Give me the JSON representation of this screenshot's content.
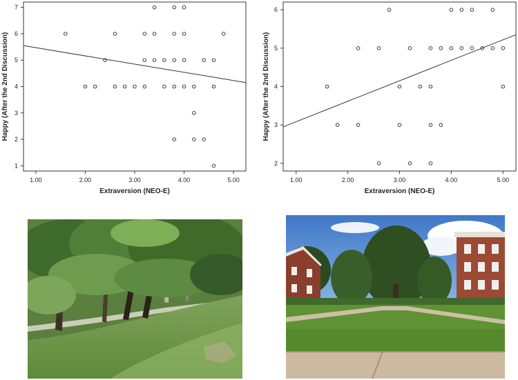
{
  "chart_data": [
    {
      "type": "scatter",
      "xlabel": "Extraversion (NEO-E)",
      "ylabel": "Happy (After the 2nd Discussion)",
      "xticks": [
        "1.00",
        "2.00",
        "3.00",
        "4.00",
        "5.00"
      ],
      "yticks": [
        "1",
        "2",
        "3",
        "4",
        "5",
        "6",
        "7"
      ],
      "xlim": [
        0.75,
        5.25
      ],
      "ylim": [
        0.8,
        7.2
      ],
      "points": [
        [
          1.6,
          6
        ],
        [
          2.6,
          6
        ],
        [
          3.2,
          6
        ],
        [
          3.4,
          6
        ],
        [
          3.8,
          6
        ],
        [
          4.0,
          6
        ],
        [
          4.8,
          6
        ],
        [
          3.4,
          7
        ],
        [
          3.8,
          7
        ],
        [
          4.0,
          7
        ],
        [
          2.4,
          5
        ],
        [
          3.2,
          5
        ],
        [
          3.4,
          5
        ],
        [
          3.6,
          5
        ],
        [
          3.8,
          5
        ],
        [
          4.0,
          5
        ],
        [
          4.4,
          5
        ],
        [
          4.6,
          5
        ],
        [
          2.0,
          4
        ],
        [
          2.2,
          4
        ],
        [
          2.6,
          4
        ],
        [
          2.8,
          4
        ],
        [
          3.0,
          4
        ],
        [
          3.2,
          4
        ],
        [
          3.6,
          4
        ],
        [
          3.8,
          4
        ],
        [
          4.0,
          4
        ],
        [
          4.2,
          4
        ],
        [
          4.6,
          4
        ],
        [
          4.2,
          3
        ],
        [
          3.8,
          2
        ],
        [
          4.2,
          2
        ],
        [
          4.4,
          2
        ],
        [
          4.6,
          1
        ]
      ],
      "fit_line": [
        [
          0.75,
          5.55
        ],
        [
          5.25,
          4.15
        ]
      ]
    },
    {
      "type": "scatter",
      "xlabel": "Extraversion (NEO-E)",
      "ylabel": "Happy (After the 2nd Discussion)",
      "xticks": [
        "1.00",
        "2.00",
        "3.00",
        "4.00",
        "5.00"
      ],
      "yticks": [
        "2",
        "3",
        "4",
        "5",
        "6"
      ],
      "xlim": [
        0.75,
        5.25
      ],
      "ylim": [
        1.8,
        6.2
      ],
      "points": [
        [
          2.8,
          6
        ],
        [
          4.0,
          6
        ],
        [
          4.2,
          6
        ],
        [
          4.4,
          6
        ],
        [
          4.8,
          6
        ],
        [
          2.2,
          5
        ],
        [
          2.6,
          5
        ],
        [
          3.2,
          5
        ],
        [
          3.6,
          5
        ],
        [
          3.8,
          5
        ],
        [
          4.0,
          5
        ],
        [
          4.2,
          5
        ],
        [
          4.4,
          5
        ],
        [
          4.6,
          5
        ],
        [
          4.8,
          5
        ],
        [
          5.0,
          5
        ],
        [
          1.6,
          4
        ],
        [
          3.0,
          4
        ],
        [
          3.4,
          4
        ],
        [
          3.6,
          4
        ],
        [
          5.0,
          4
        ],
        [
          1.8,
          3
        ],
        [
          2.2,
          3
        ],
        [
          3.0,
          3
        ],
        [
          3.6,
          3
        ],
        [
          3.8,
          3
        ],
        [
          2.6,
          2
        ],
        [
          3.2,
          2
        ],
        [
          3.6,
          2
        ]
      ],
      "fit_line": [
        [
          0.75,
          2.95
        ],
        [
          5.25,
          5.35
        ]
      ]
    }
  ]
}
